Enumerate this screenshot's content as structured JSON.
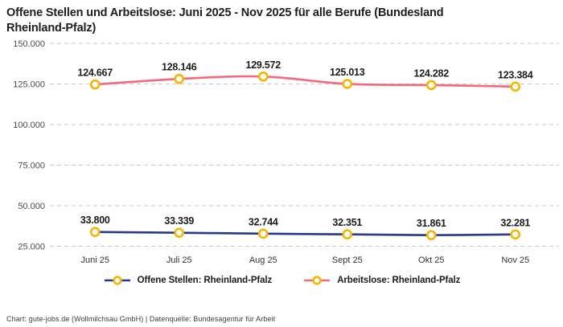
{
  "header": {
    "title_lines": [
      "Offene Stellen und Arbeitslose: Juni 2025 - Nov 2025 für alle Berufe (Bundesland",
      "Rheinland-Pfalz)"
    ]
  },
  "footer": {
    "credit": "Chart: gute-jobs.de (Wollmilchsau GmbH) | Datenquelle: Bundesagentur für Arbeit"
  },
  "colors": {
    "background": "#ffffff",
    "title": "#1d1d1d",
    "grid": "#c9c9c9",
    "ytick_label": "#4c4c4c",
    "xtick_label": "#333333",
    "data_label": "#1c1c1c"
  },
  "chart_data": {
    "type": "line",
    "title": "Offene Stellen und Arbeitslose: Juni 2025 - Nov 2025 für alle Berufe (Bundesland Rheinland-Pfalz)",
    "categories": [
      "Juni 25",
      "Juli 25",
      "Aug 25",
      "Sept 25",
      "Okt 25",
      "Nov 25"
    ],
    "series": [
      {
        "name": "Offene Stellen: Rheinland-Pfalz",
        "color": "#28398C",
        "values": [
          33800,
          33339,
          32744,
          32351,
          31861,
          32281
        ],
        "point_labels": [
          "33.800",
          "33.339",
          "32.744",
          "32.351",
          "31.861",
          "32.281"
        ]
      },
      {
        "name": "Arbeitslose: Rheinland-Pfalz",
        "color": "#F5697C",
        "values": [
          124667,
          128146,
          129572,
          125013,
          124282,
          123384
        ],
        "point_labels": [
          "124.667",
          "128.146",
          "129.572",
          "125.013",
          "124.282",
          "123.384"
        ]
      }
    ],
    "ylim": [
      25000,
      150000
    ],
    "yticks": [
      150000,
      125000,
      100000,
      75000,
      50000,
      25000
    ],
    "ytick_labels": [
      "150.000",
      "125.000",
      "100.000",
      "75.000",
      "50.000",
      "25.000"
    ],
    "marker": {
      "fill": "#ffffff",
      "stroke": "#F7B500"
    },
    "grid": {
      "orientation": "horizontal",
      "style": "dashed",
      "on": true
    },
    "legend_position": "bottom"
  }
}
